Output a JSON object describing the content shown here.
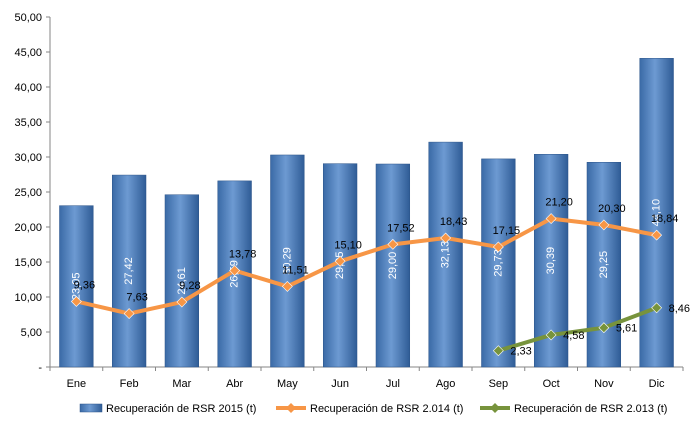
{
  "chart_data": {
    "type": "bar",
    "categories": [
      "Ene",
      "Feb",
      "Mar",
      "Abr",
      "May",
      "Jun",
      "Jul",
      "Ago",
      "Sep",
      "Oct",
      "Nov",
      "Dic"
    ],
    "ylim": [
      0,
      50
    ],
    "ytick_step": 5,
    "ytick_labels": [
      "-",
      "5,00",
      "10,00",
      "15,00",
      "20,00",
      "25,00",
      "30,00",
      "35,00",
      "40,00",
      "45,00",
      "50,00"
    ],
    "grid": false,
    "legend_position": "bottom",
    "series": [
      {
        "name": "Recuperación de RSR 2015 (t)",
        "type": "bar",
        "color": "#4f81bd",
        "values": [
          23.05,
          27.42,
          24.61,
          26.59,
          30.29,
          29.05,
          29.0,
          32.13,
          29.73,
          30.39,
          29.25,
          44.1
        ],
        "labels": [
          "23,05",
          "27,42",
          "24,61",
          "26,59",
          "30,29",
          "29,05",
          "29,00",
          "32,13",
          "29,73",
          "30,39",
          "29,25",
          "44,10"
        ]
      },
      {
        "name": "Recuperación de RSR 2.014 (t)",
        "type": "line",
        "color": "#f79646",
        "values": [
          9.36,
          7.63,
          9.28,
          13.78,
          11.51,
          15.1,
          17.52,
          18.43,
          17.15,
          21.2,
          20.3,
          18.84
        ],
        "labels": [
          "9,36",
          "7,63",
          "9,28",
          "13,78",
          "11,51",
          "15,10",
          "17,52",
          "18,43",
          "17,15",
          "21,20",
          "20,30",
          "18,84"
        ]
      },
      {
        "name": "Recuperación de RSR 2.013 (t)",
        "type": "line",
        "color": "#77933c",
        "values": [
          null,
          null,
          null,
          null,
          null,
          null,
          null,
          null,
          2.33,
          4.58,
          5.61,
          8.46
        ],
        "labels": [
          null,
          null,
          null,
          null,
          null,
          null,
          null,
          null,
          "2,33",
          "4,58",
          "5,61",
          "8,46"
        ]
      }
    ]
  }
}
